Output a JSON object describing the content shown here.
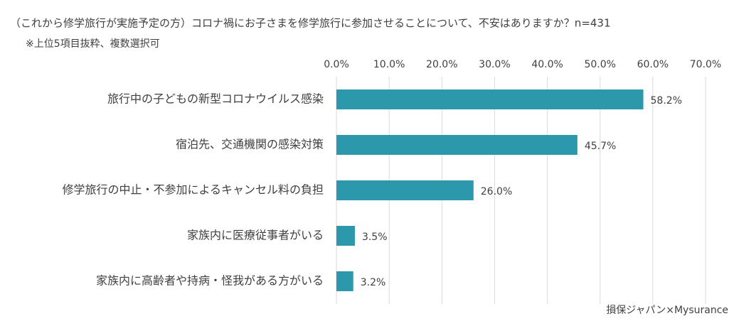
{
  "chart_data": {
    "type": "bar",
    "orientation": "horizontal",
    "title": "（これから修学旅行が実施予定の方）コロナ禍にお子さまを修学旅行に参加させることについて、不安はありますか？n=431",
    "subtitle": "※上位5項目抜粋、複数選択可",
    "source": "損保ジャパン×Mysurance",
    "categories": [
      "旅行中の子どもの新型コロナウイルス感染",
      "宿泊先、交通機関の感染対策",
      "修学旅行の中止・不参加によるキャンセル料の負担",
      "家族内に医療従事者がいる",
      "家族内に高齢者や持病・怪我がある方がいる"
    ],
    "values": [
      58.2,
      45.7,
      26.0,
      3.5,
      3.2
    ],
    "value_labels": [
      "58.2%",
      "45.7%",
      "26.0%",
      "3.5%",
      "3.2%"
    ],
    "color": "#2b98ab",
    "xlim": [
      0,
      70
    ],
    "xticks": [
      {
        "value": 0,
        "label": "0.0%"
      },
      {
        "value": 10,
        "label": "10.0%"
      },
      {
        "value": 20,
        "label": "20.0%"
      },
      {
        "value": 30,
        "label": "30.0%"
      },
      {
        "value": 40,
        "label": "40.0%"
      },
      {
        "value": 50,
        "label": "50.0%"
      },
      {
        "value": 60,
        "label": "60.0%"
      },
      {
        "value": 70,
        "label": "70.0%"
      }
    ],
    "grid": true
  }
}
